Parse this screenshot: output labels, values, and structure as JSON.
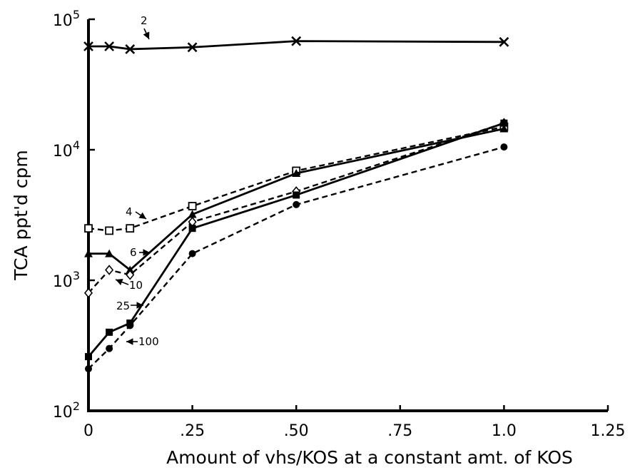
{
  "chart_data": {
    "type": "line",
    "title": "",
    "xlabel": "Amount of vhs/KOS at a constant amt. of KOS",
    "ylabel": "TCA ppt'd cpm",
    "yscale": "log",
    "xlim": [
      0,
      1.25
    ],
    "ylim": [
      100,
      100000
    ],
    "x_ticks": [
      {
        "value": 0,
        "label": "0"
      },
      {
        "value": 0.25,
        "label": ".25"
      },
      {
        "value": 0.5,
        "label": ".50"
      },
      {
        "value": 0.75,
        "label": ".75"
      },
      {
        "value": 1.0,
        "label": "1.0"
      },
      {
        "value": 1.25,
        "label": "1.25"
      }
    ],
    "y_ticks": [
      {
        "value": 100,
        "base": "10",
        "exp": "2"
      },
      {
        "value": 1000,
        "base": "10",
        "exp": "3"
      },
      {
        "value": 10000,
        "base": "10",
        "exp": "4"
      },
      {
        "value": 100000,
        "base": "10",
        "exp": "5"
      }
    ],
    "grid": false,
    "series": [
      {
        "name": "2",
        "marker": "x",
        "line": "solid",
        "x": [
          0,
          0.05,
          0.1,
          0.25,
          0.5,
          1.0
        ],
        "y": [
          62000,
          62000,
          59000,
          61000,
          68000,
          67000
        ]
      },
      {
        "name": "4",
        "marker": "open-square",
        "line": "dashed",
        "x": [
          0,
          0.05,
          0.1,
          0.25,
          0.5,
          1.0
        ],
        "y": [
          2500,
          2400,
          2500,
          3700,
          6900,
          15000
        ]
      },
      {
        "name": "6",
        "marker": "filled-triangle",
        "line": "solid",
        "x": [
          0,
          0.05,
          0.1,
          0.25,
          0.5,
          1.0
        ],
        "y": [
          1600,
          1600,
          1200,
          3200,
          6600,
          14500
        ]
      },
      {
        "name": "10",
        "marker": "open-diamond",
        "line": "dashed",
        "x": [
          0,
          0.05,
          0.1,
          0.25,
          0.5,
          1.0
        ],
        "y": [
          800,
          1200,
          1100,
          2800,
          4800,
          16000
        ]
      },
      {
        "name": "25",
        "marker": "filled-square",
        "line": "solid",
        "x": [
          0,
          0.05,
          0.1,
          0.25,
          0.5,
          1.0
        ],
        "y": [
          260,
          400,
          470,
          2500,
          4500,
          16000
        ]
      },
      {
        "name": "100",
        "marker": "filled-circle",
        "line": "dashed",
        "x": [
          0,
          0.05,
          0.1,
          0.25,
          0.5,
          1.0
        ],
        "y": [
          210,
          300,
          450,
          1600,
          3800,
          10500
        ]
      }
    ],
    "annotations": [
      {
        "label": "2",
        "series": "2"
      },
      {
        "label": "4",
        "series": "4"
      },
      {
        "label": "6",
        "series": "6"
      },
      {
        "label": "10",
        "series": "10"
      },
      {
        "label": "25",
        "series": "25"
      },
      {
        "label": "100",
        "series": "100"
      }
    ]
  }
}
